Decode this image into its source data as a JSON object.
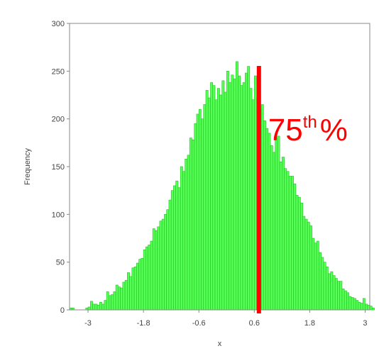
{
  "chart_data": {
    "type": "bar",
    "title": "",
    "xlabel": "x",
    "ylabel": "Frequency",
    "xlim": [
      -3.4,
      3.1
    ],
    "ylim": [
      0,
      300
    ],
    "x_ticks": [
      -3,
      -1.8,
      -0.6,
      0.6,
      1.8,
      3
    ],
    "x_tick_labels": [
      "-3",
      "-1.8",
      "-0.6",
      "0.6",
      "1.8",
      "3"
    ],
    "y_ticks": [
      0,
      50,
      100,
      150,
      200,
      250,
      300
    ],
    "y_tick_labels": [
      "0",
      "50",
      "100",
      "150",
      "200",
      "250",
      "300"
    ],
    "grid": false,
    "bin_width": 0.05,
    "bin_start": -3.4,
    "values": [
      2,
      2,
      0,
      0,
      0,
      0,
      0,
      2,
      3,
      9,
      6,
      6,
      5,
      8,
      6,
      10,
      19,
      15,
      16,
      19,
      26,
      24,
      23,
      29,
      31,
      39,
      35,
      44,
      45,
      49,
      53,
      54,
      63,
      66,
      68,
      72,
      85,
      83,
      87,
      93,
      95,
      100,
      105,
      115,
      125,
      130,
      135,
      128,
      150,
      145,
      158,
      162,
      180,
      178,
      195,
      205,
      210,
      200,
      215,
      230,
      222,
      238,
      235,
      220,
      232,
      225,
      240,
      228,
      250,
      238,
      246,
      242,
      260,
      245,
      235,
      238,
      248,
      255,
      232,
      220,
      245,
      222,
      210,
      215,
      198,
      190,
      185,
      172,
      165,
      180,
      182,
      155,
      160,
      148,
      145,
      140,
      140,
      132,
      120,
      118,
      112,
      98,
      95,
      92,
      88,
      75,
      70,
      72,
      60,
      55,
      50,
      45,
      38,
      40,
      36,
      33,
      30,
      30,
      22,
      20,
      18,
      14,
      13,
      12,
      10,
      8,
      7,
      12,
      6,
      5,
      4,
      2
    ],
    "bar_color": "#55ff55",
    "bar_edge_color": "#22c022",
    "marker": {
      "x": 0.7,
      "color": "#ff0000",
      "label_main": "75",
      "label_sup": "th",
      "label_suffix": "%"
    }
  }
}
